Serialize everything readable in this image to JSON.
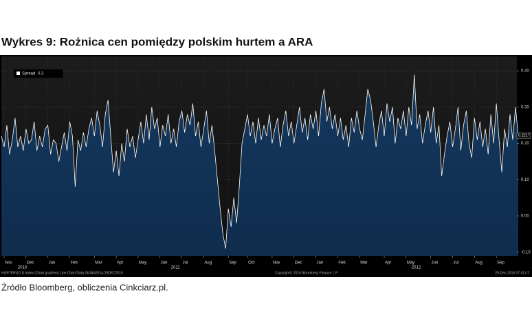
{
  "chart_data": {
    "type": "area-line",
    "title": "Wykres 9: Rożnica cen pomiędzy polskim hurtem a ARA",
    "source": "Źródło Bloomberg, obliczenia Cinkciarz.pl.",
    "footer_left": "HURTERUO U Index (Chart gradirea) Line Chart Daily 06JAN2014-29DEC2016",
    "copyright": "Copyright© 2016 Bloomberg Finance L.P.",
    "timestamp": "29-Dec-2016 07:41:07",
    "series": [
      {
        "name": "Spread",
        "color": "#ffffff",
        "fill": "#123a63",
        "values": [
          0.22,
          0.19,
          0.25,
          0.17,
          0.21,
          0.27,
          0.19,
          0.22,
          0.18,
          0.24,
          0.2,
          0.21,
          0.26,
          0.18,
          0.22,
          0.19,
          0.24,
          0.25,
          0.17,
          0.21,
          0.2,
          0.15,
          0.19,
          0.23,
          0.18,
          0.26,
          0.22,
          0.08,
          0.21,
          0.18,
          0.23,
          0.19,
          0.24,
          0.27,
          0.22,
          0.29,
          0.25,
          0.19,
          0.28,
          0.32,
          0.22,
          0.12,
          0.18,
          0.11,
          0.2,
          0.15,
          0.24,
          0.19,
          0.22,
          0.16,
          0.21,
          0.26,
          0.2,
          0.28,
          0.21,
          0.3,
          0.24,
          0.27,
          0.19,
          0.25,
          0.22,
          0.28,
          0.2,
          0.24,
          0.19,
          0.26,
          0.29,
          0.23,
          0.28,
          0.25,
          0.31,
          0.22,
          0.26,
          0.19,
          0.24,
          0.29,
          0.2,
          0.25,
          0.18,
          0.1,
          0.02,
          -0.05,
          -0.09,
          0.02,
          -0.03,
          0.05,
          -0.02,
          0.08,
          0.2,
          0.24,
          0.28,
          0.22,
          0.26,
          0.2,
          0.27,
          0.21,
          0.25,
          0.22,
          0.28,
          0.2,
          0.24,
          0.27,
          0.19,
          0.25,
          0.29,
          0.22,
          0.26,
          0.2,
          0.25,
          0.3,
          0.23,
          0.27,
          0.21,
          0.28,
          0.24,
          0.29,
          0.22,
          0.31,
          0.35,
          0.26,
          0.3,
          0.24,
          0.28,
          0.22,
          0.27,
          0.21,
          0.25,
          0.19,
          0.27,
          0.23,
          0.29,
          0.24,
          0.21,
          0.28,
          0.35,
          0.32,
          0.26,
          0.19,
          0.25,
          0.29,
          0.22,
          0.31,
          0.26,
          0.3,
          0.2,
          0.27,
          0.24,
          0.29,
          0.22,
          0.3,
          0.25,
          0.39,
          0.24,
          0.28,
          0.2,
          0.25,
          0.29,
          0.23,
          0.3,
          0.2,
          0.25,
          0.11,
          0.17,
          0.22,
          0.26,
          0.19,
          0.24,
          0.3,
          0.18,
          0.25,
          0.29,
          0.2,
          0.16,
          0.27,
          0.21,
          0.26,
          0.19,
          0.24,
          0.17,
          0.28,
          0.2,
          0.31,
          0.21,
          0.12,
          0.24,
          0.19,
          0.28,
          0.21,
          0.3,
          0.2217
        ]
      }
    ],
    "xlim": [
      0,
      188
    ],
    "xticks": [
      {
        "value": 1,
        "label": "Nov"
      },
      {
        "value": 9,
        "label": "Dec"
      },
      {
        "value": 17,
        "label": "Jan"
      },
      {
        "value": 25,
        "label": "Feb"
      },
      {
        "value": 34,
        "label": "Mar"
      },
      {
        "value": 42,
        "label": "Apr"
      },
      {
        "value": 50,
        "label": "May"
      },
      {
        "value": 58,
        "label": "Jun"
      },
      {
        "value": 66,
        "label": "Jul"
      },
      {
        "value": 74,
        "label": "Aug"
      },
      {
        "value": 83,
        "label": "Sep"
      },
      {
        "value": 90,
        "label": "Oct"
      },
      {
        "value": 99,
        "label": "Nov"
      },
      {
        "value": 107,
        "label": "Dec"
      },
      {
        "value": 115,
        "label": "Jan"
      },
      {
        "value": 123,
        "label": "Feb"
      },
      {
        "value": 131,
        "label": "Mar"
      },
      {
        "value": 140,
        "label": "Apr"
      },
      {
        "value": 148,
        "label": "May"
      },
      {
        "value": 157,
        "label": "Jun"
      },
      {
        "value": 165,
        "label": "Jul"
      },
      {
        "value": 173,
        "label": "Aug"
      },
      {
        "value": 181,
        "label": "Sep"
      }
    ],
    "year_ticks": [
      {
        "value": 6,
        "label": "2010"
      },
      {
        "value": 62,
        "label": "2011"
      },
      {
        "value": 150,
        "label": "2012"
      }
    ],
    "ylim": [
      -0.11,
      0.44
    ],
    "yticks": [
      {
        "value": 0.4,
        "label": "0.40"
      },
      {
        "value": 0.3,
        "label": "0.30"
      },
      {
        "value": 0.2,
        "label": "0.20"
      },
      {
        "value": 0.1,
        "label": "0.10"
      },
      {
        "value": 0,
        "label": "0.00"
      },
      {
        "value": -0.1,
        "label": "-0.10"
      }
    ],
    "grid": true
  }
}
